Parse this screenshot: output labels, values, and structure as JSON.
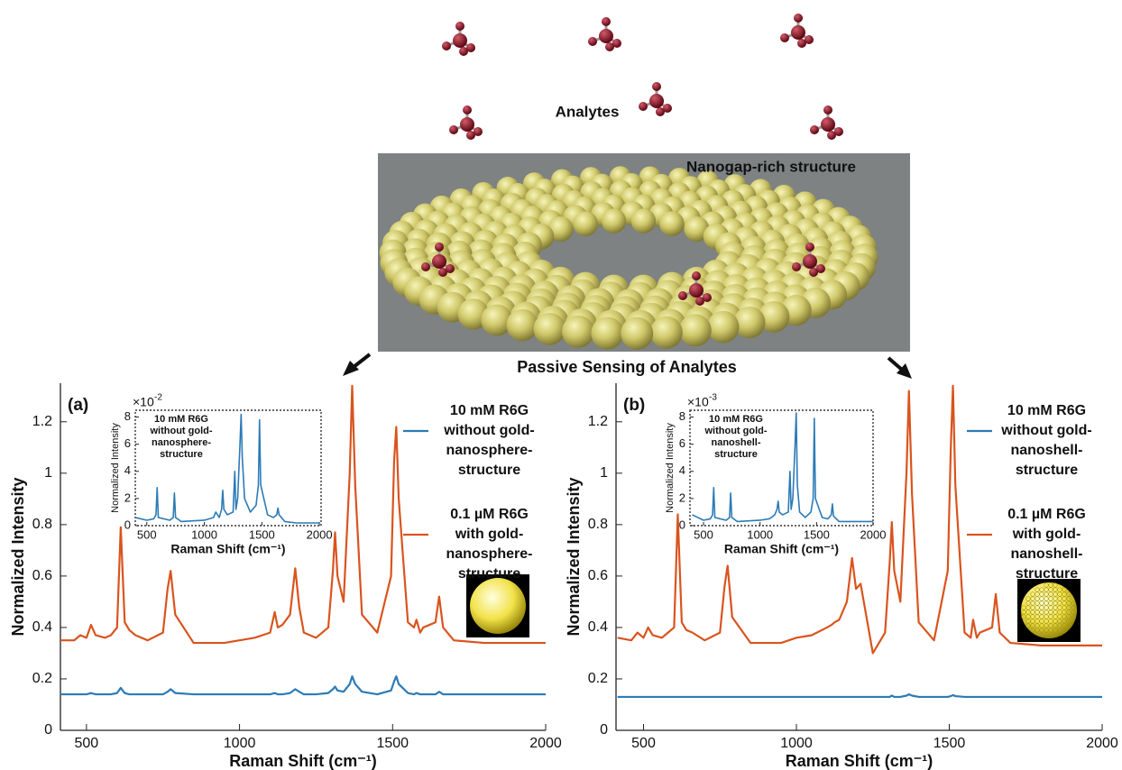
{
  "diagram": {
    "analytes_label": "Analytes",
    "structure_label": "Nanogap-rich structure",
    "sensing_label": "Passive Sensing of Analytes"
  },
  "chart_data": [
    {
      "type": "line",
      "panel_label": "(a)",
      "xlabel": "Raman Shift (cm⁻¹)",
      "ylabel": "Normalized Intensity",
      "xlim": [
        415,
        2000
      ],
      "xticks": [
        500,
        1000,
        1500,
        2000
      ],
      "ylim": [
        0,
        1.35
      ],
      "yticks": [
        0,
        0.2,
        0.4,
        0.6,
        0.8,
        1,
        1.2
      ],
      "x": [
        415,
        460,
        480,
        500,
        515,
        530,
        560,
        580,
        600,
        612,
        625,
        640,
        660,
        700,
        750,
        765,
        775,
        790,
        850,
        950,
        1000,
        1050,
        1100,
        1115,
        1125,
        1140,
        1165,
        1182,
        1195,
        1210,
        1250,
        1290,
        1305,
        1312,
        1320,
        1340,
        1360,
        1368,
        1378,
        1400,
        1450,
        1495,
        1505,
        1512,
        1520,
        1550,
        1570,
        1578,
        1590,
        1600,
        1640,
        1652,
        1665,
        1700,
        1800,
        2000
      ],
      "series": [
        {
          "name": "10 mM R6G\nwithout gold-\nnanosphere-\nstructure",
          "color": "#2c7bb6",
          "values": [
            0.14,
            0.14,
            0.14,
            0.14,
            0.145,
            0.14,
            0.14,
            0.14,
            0.145,
            0.165,
            0.145,
            0.14,
            0.14,
            0.14,
            0.14,
            0.15,
            0.16,
            0.145,
            0.14,
            0.14,
            0.14,
            0.14,
            0.14,
            0.145,
            0.14,
            0.14,
            0.145,
            0.16,
            0.15,
            0.14,
            0.14,
            0.145,
            0.16,
            0.17,
            0.155,
            0.15,
            0.18,
            0.21,
            0.18,
            0.15,
            0.14,
            0.155,
            0.19,
            0.21,
            0.18,
            0.145,
            0.14,
            0.145,
            0.14,
            0.14,
            0.14,
            0.15,
            0.14,
            0.14,
            0.14,
            0.14
          ]
        },
        {
          "name": "0.1 µM R6G\nwith gold-\nnanosphere-\nstructure",
          "color": "#d9541e",
          "values": [
            0.35,
            0.35,
            0.37,
            0.36,
            0.41,
            0.37,
            0.36,
            0.37,
            0.4,
            0.79,
            0.42,
            0.39,
            0.37,
            0.35,
            0.38,
            0.55,
            0.62,
            0.45,
            0.34,
            0.34,
            0.35,
            0.36,
            0.38,
            0.46,
            0.4,
            0.41,
            0.45,
            0.63,
            0.48,
            0.38,
            0.36,
            0.4,
            0.62,
            0.77,
            0.6,
            0.5,
            1.0,
            1.34,
            0.95,
            0.45,
            0.38,
            0.6,
            1.05,
            1.18,
            0.9,
            0.42,
            0.4,
            0.43,
            0.38,
            0.4,
            0.42,
            0.52,
            0.4,
            0.35,
            0.34,
            0.34
          ]
        }
      ]
    },
    {
      "type": "line",
      "xlabel": "Raman Shift (cm⁻¹)",
      "ylabel": "Normalized Intensity",
      "annotation": "10 mM R6G\nwithout gold-\nnanosphere-\nstructure",
      "y_offset_text": "×10",
      "y_offset_exponent": "-2",
      "xlim": [
        400,
        2015
      ],
      "xticks": [
        500,
        1000,
        1500,
        2000
      ],
      "ylim": [
        0,
        0.085
      ],
      "yticks": [
        0,
        {
          "value": 0.02,
          "label": "2"
        },
        {
          "value": 0.04,
          "label": "4"
        },
        {
          "value": 0.06,
          "label": "6"
        },
        {
          "value": 0.08,
          "label": "8"
        }
      ],
      "x": [
        400,
        500,
        560,
        580,
        590,
        600,
        700,
        730,
        740,
        750,
        800,
        1000,
        1080,
        1100,
        1130,
        1150,
        1160,
        1170,
        1200,
        1250,
        1265,
        1275,
        1290,
        1310,
        1320,
        1330,
        1350,
        1400,
        1450,
        1470,
        1480,
        1490,
        1550,
        1600,
        1630,
        1640,
        1650,
        1700,
        1800,
        1900,
        2000
      ],
      "series": [
        {
          "color": "#2c7bb6",
          "values": [
            0.006,
            0.004,
            0.005,
            0.008,
            0.028,
            0.006,
            0.004,
            0.006,
            0.024,
            0.006,
            0.003,
            0.004,
            0.006,
            0.01,
            0.006,
            0.012,
            0.026,
            0.012,
            0.008,
            0.01,
            0.04,
            0.012,
            0.02,
            0.06,
            0.082,
            0.05,
            0.02,
            0.01,
            0.015,
            0.03,
            0.078,
            0.03,
            0.008,
            0.006,
            0.008,
            0.013,
            0.008,
            0.003,
            0.002,
            0.002,
            0.002
          ]
        }
      ]
    },
    {
      "type": "line",
      "panel_label": "(b)",
      "xlabel": "Raman Shift (cm⁻¹)",
      "ylabel": "Normalized Intensity",
      "xlim": [
        410,
        2000
      ],
      "xticks": [
        500,
        1000,
        1500,
        2000
      ],
      "ylim": [
        0,
        1.35
      ],
      "yticks": [
        0,
        0.2,
        0.4,
        0.6,
        0.8,
        1,
        1.2
      ],
      "x": [
        415,
        460,
        480,
        500,
        515,
        530,
        560,
        580,
        600,
        612,
        625,
        640,
        660,
        700,
        750,
        765,
        775,
        790,
        850,
        950,
        1000,
        1050,
        1100,
        1115,
        1125,
        1140,
        1165,
        1182,
        1195,
        1210,
        1250,
        1290,
        1305,
        1312,
        1320,
        1340,
        1360,
        1368,
        1378,
        1400,
        1450,
        1495,
        1505,
        1512,
        1520,
        1550,
        1570,
        1578,
        1590,
        1600,
        1640,
        1652,
        1665,
        1700,
        1800,
        2000
      ],
      "series": [
        {
          "name": "10 mM R6G\nwithout gold-\nnanoshell-\nstructure",
          "color": "#2c7bb6",
          "values": [
            0.13,
            0.13,
            0.13,
            0.13,
            0.13,
            0.13,
            0.13,
            0.13,
            0.13,
            0.13,
            0.13,
            0.13,
            0.13,
            0.13,
            0.13,
            0.13,
            0.13,
            0.13,
            0.13,
            0.13,
            0.13,
            0.13,
            0.13,
            0.13,
            0.13,
            0.13,
            0.13,
            0.13,
            0.13,
            0.13,
            0.13,
            0.13,
            0.13,
            0.135,
            0.13,
            0.13,
            0.135,
            0.14,
            0.135,
            0.13,
            0.13,
            0.13,
            0.133,
            0.137,
            0.133,
            0.13,
            0.13,
            0.13,
            0.13,
            0.13,
            0.13,
            0.13,
            0.13,
            0.13,
            0.13,
            0.13
          ]
        },
        {
          "name": "0.1 µM R6G\nwith gold-\nnanoshell-\nstructure",
          "color": "#d9541e",
          "values": [
            0.36,
            0.35,
            0.38,
            0.36,
            0.4,
            0.37,
            0.36,
            0.38,
            0.4,
            0.84,
            0.42,
            0.39,
            0.38,
            0.35,
            0.38,
            0.56,
            0.64,
            0.44,
            0.34,
            0.34,
            0.36,
            0.37,
            0.4,
            0.41,
            0.42,
            0.43,
            0.5,
            0.67,
            0.55,
            0.57,
            0.3,
            0.38,
            0.65,
            0.81,
            0.62,
            0.5,
            1.0,
            1.32,
            0.92,
            0.42,
            0.35,
            0.62,
            1.1,
            1.34,
            0.95,
            0.38,
            0.36,
            0.43,
            0.36,
            0.38,
            0.4,
            0.53,
            0.38,
            0.34,
            0.33,
            0.33
          ]
        }
      ]
    },
    {
      "type": "line",
      "xlabel": "Raman Shift (cm⁻¹)",
      "ylabel": "Normalized Intensity",
      "annotation": "10 mM R6G\nwithout gold-\nnanoshell-\nstructure",
      "y_offset_text": "×10",
      "y_offset_exponent": "-3",
      "xlim": [
        380,
        2000
      ],
      "xticks": [
        500,
        1000,
        1500,
        2000
      ],
      "ylim": [
        0,
        0.0085
      ],
      "yticks": [
        0,
        {
          "value": 0.002,
          "label": "2"
        },
        {
          "value": 0.004,
          "label": "4"
        },
        {
          "value": 0.006,
          "label": "6"
        },
        {
          "value": 0.008,
          "label": "8"
        }
      ],
      "x": [
        400,
        500,
        560,
        580,
        590,
        600,
        700,
        730,
        740,
        750,
        800,
        1000,
        1080,
        1100,
        1130,
        1150,
        1160,
        1170,
        1200,
        1250,
        1265,
        1275,
        1290,
        1310,
        1320,
        1330,
        1350,
        1400,
        1450,
        1470,
        1480,
        1490,
        1550,
        1600,
        1630,
        1640,
        1650,
        1700,
        1800,
        1900,
        2000
      ],
      "series": [
        {
          "color": "#2c7bb6",
          "values": [
            0.0008,
            0.0004,
            0.0005,
            0.0008,
            0.0028,
            0.0006,
            0.0004,
            0.0006,
            0.0024,
            0.0006,
            0.0003,
            0.0004,
            0.0005,
            0.0006,
            0.0008,
            0.0012,
            0.0018,
            0.001,
            0.0008,
            0.001,
            0.004,
            0.0012,
            0.002,
            0.006,
            0.0083,
            0.003,
            0.001,
            0.0006,
            0.001,
            0.002,
            0.0079,
            0.002,
            0.0006,
            0.0005,
            0.0008,
            0.0016,
            0.0007,
            0.0003,
            0.0003,
            0.0003,
            0.0003
          ]
        }
      ]
    }
  ]
}
